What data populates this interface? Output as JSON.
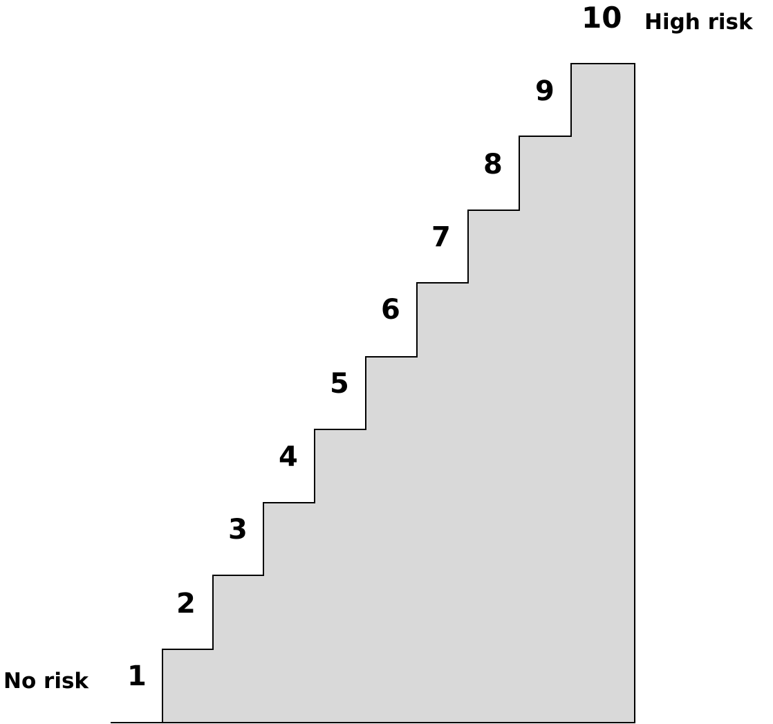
{
  "scale": {
    "low_label": "No risk",
    "high_label": "High risk",
    "steps": [
      {
        "label": "1"
      },
      {
        "label": "2"
      },
      {
        "label": "3"
      },
      {
        "label": "4"
      },
      {
        "label": "5"
      },
      {
        "label": "6"
      },
      {
        "label": "7"
      },
      {
        "label": "8"
      },
      {
        "label": "9"
      },
      {
        "label": "10"
      }
    ]
  },
  "colors": {
    "fill": "#d9d9d9",
    "stroke": "#000000",
    "text": "#000000"
  }
}
